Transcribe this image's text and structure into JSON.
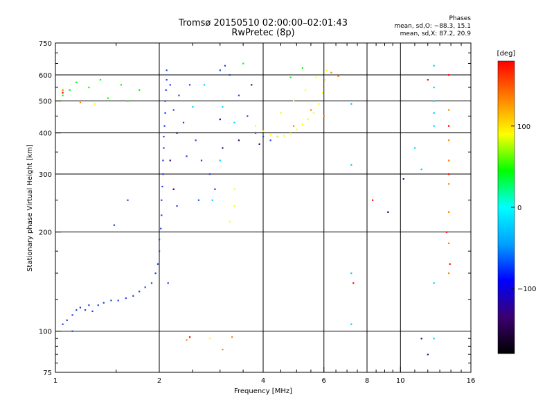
{
  "header": {
    "title_line1": "Tromsø 20150510 02:00:00–02:01:43",
    "title_line2": "RwPretec (8p)",
    "phase_label": "Phases",
    "stat_o": "mean, sd,O: −88.3, 15.1",
    "stat_x": "mean, sd,X:  87.2, 20.9"
  },
  "chart_data": {
    "type": "scatter",
    "title": "Tromsø 20150510 02:00:00–02:01:43",
    "subtitle": "RwPretec (8p)",
    "xlabel": "Frequency [MHz]",
    "ylabel": "Stationary phase Virtual Height [km]",
    "xscale": "log",
    "yscale": "log",
    "xlim": [
      1,
      16
    ],
    "ylim": [
      75,
      750
    ],
    "x_ticks": [
      1,
      2,
      4,
      6,
      8,
      10,
      16
    ],
    "x_tick_labels": [
      "1",
      "2",
      "4",
      "6",
      "8",
      "10",
      "16"
    ],
    "y_ticks": [
      75,
      100,
      200,
      300,
      400,
      500,
      600,
      750
    ],
    "y_tick_labels": [
      "75",
      "100",
      "200",
      "300",
      "400",
      "500",
      "600",
      "750"
    ],
    "grid": true,
    "colorbar": {
      "label": "[deg]",
      "range": [
        -180,
        180
      ],
      "ticks": [
        -100,
        0,
        100
      ],
      "tick_labels": [
        "−100",
        "0",
        "100"
      ],
      "colors": [
        "#000000",
        "#3b0070",
        "#0000ff",
        "#00a0ff",
        "#00ffff",
        "#00ff00",
        "#ffff00",
        "#ff8000",
        "#ff0000"
      ]
    },
    "series": [
      {
        "color": "#2040e0",
        "points": [
          [
            1.05,
            105
          ],
          [
            1.08,
            108
          ],
          [
            1.12,
            112
          ],
          [
            1.15,
            116
          ],
          [
            1.18,
            118
          ],
          [
            1.22,
            116
          ],
          [
            1.28,
            115
          ],
          [
            1.33,
            120
          ],
          [
            1.38,
            122
          ],
          [
            1.45,
            124
          ],
          [
            1.52,
            124
          ],
          [
            1.6,
            126
          ],
          [
            1.68,
            128
          ],
          [
            1.75,
            132
          ],
          [
            1.82,
            136
          ],
          [
            1.9,
            140
          ],
          [
            1.95,
            150
          ],
          [
            1.98,
            160
          ],
          [
            2.0,
            175
          ],
          [
            2.0,
            190
          ],
          [
            2.02,
            205
          ],
          [
            2.03,
            225
          ],
          [
            2.03,
            250
          ],
          [
            2.04,
            275
          ],
          [
            2.05,
            300
          ],
          [
            2.05,
            330
          ],
          [
            2.06,
            360
          ],
          [
            2.06,
            390
          ],
          [
            2.07,
            420
          ],
          [
            2.08,
            460
          ],
          [
            2.08,
            500
          ],
          [
            2.09,
            540
          ],
          [
            2.1,
            580
          ],
          [
            2.1,
            620
          ],
          [
            2.15,
            560
          ],
          [
            2.2,
            470
          ],
          [
            2.28,
            520
          ],
          [
            2.35,
            430
          ],
          [
            2.45,
            560
          ],
          [
            2.55,
            380
          ],
          [
            2.65,
            330
          ],
          [
            2.8,
            300
          ],
          [
            2.9,
            270
          ],
          [
            3.0,
            620
          ],
          [
            3.1,
            640
          ],
          [
            3.2,
            600
          ],
          [
            3.4,
            520
          ],
          [
            3.6,
            450
          ],
          [
            3.8,
            400
          ],
          [
            4.0,
            390
          ],
          [
            4.2,
            380
          ],
          [
            4.4,
            390
          ],
          [
            1.48,
            210
          ],
          [
            1.62,
            250
          ],
          [
            1.12,
            100
          ],
          [
            1.25,
            120
          ],
          [
            2.12,
            140
          ],
          [
            2.25,
            240
          ],
          [
            2.4,
            340
          ],
          [
            2.6,
            250
          ]
        ]
      },
      {
        "color": "#00d0ff",
        "points": [
          [
            2.5,
            480
          ],
          [
            2.7,
            560
          ],
          [
            2.85,
            250
          ],
          [
            3.0,
            330
          ],
          [
            7.2,
            490
          ],
          [
            7.2,
            320
          ],
          [
            7.2,
            150
          ],
          [
            7.2,
            105
          ],
          [
            12.5,
            640
          ],
          [
            12.5,
            550
          ],
          [
            12.5,
            500
          ],
          [
            12.5,
            460
          ],
          [
            12.5,
            420
          ],
          [
            11.0,
            360
          ],
          [
            11.5,
            310
          ],
          [
            12.5,
            140
          ],
          [
            12.5,
            95
          ],
          [
            3.05,
            480
          ],
          [
            3.3,
            430
          ]
        ]
      },
      {
        "color": "#00ff00",
        "points": [
          [
            1.05,
            520
          ],
          [
            1.1,
            540
          ],
          [
            1.15,
            570
          ],
          [
            1.25,
            550
          ],
          [
            1.35,
            580
          ],
          [
            1.42,
            510
          ],
          [
            1.55,
            560
          ],
          [
            1.62,
            500
          ],
          [
            1.75,
            540
          ],
          [
            4.8,
            590
          ],
          [
            5.2,
            630
          ],
          [
            3.5,
            650
          ]
        ]
      },
      {
        "color": "#ffff00",
        "points": [
          [
            3.8,
            420
          ],
          [
            4.0,
            405
          ],
          [
            4.2,
            395
          ],
          [
            4.4,
            390
          ],
          [
            4.6,
            392
          ],
          [
            4.8,
            398
          ],
          [
            5.0,
            410
          ],
          [
            5.2,
            425
          ],
          [
            5.4,
            440
          ],
          [
            5.6,
            460
          ],
          [
            5.8,
            490
          ],
          [
            5.95,
            530
          ],
          [
            6.05,
            580
          ],
          [
            6.1,
            620
          ],
          [
            4.5,
            460
          ],
          [
            4.9,
            500
          ],
          [
            5.3,
            540
          ],
          [
            5.7,
            590
          ],
          [
            3.3,
            240
          ],
          [
            3.2,
            215
          ],
          [
            2.8,
            95
          ],
          [
            3.3,
            270
          ],
          [
            1.02,
            500
          ],
          [
            1.3,
            490
          ]
        ]
      },
      {
        "color": "#ff8000",
        "points": [
          [
            2.4,
            94
          ],
          [
            3.05,
            88
          ],
          [
            3.25,
            96
          ],
          [
            4.9,
            420
          ],
          [
            5.5,
            470
          ],
          [
            6.0,
            450
          ],
          [
            6.6,
            595
          ],
          [
            6.3,
            610
          ],
          [
            13.8,
            470
          ],
          [
            13.8,
            380
          ],
          [
            13.8,
            330
          ],
          [
            13.8,
            280
          ],
          [
            13.8,
            230
          ],
          [
            13.8,
            185
          ],
          [
            13.8,
            150
          ],
          [
            1.05,
            540
          ],
          [
            1.18,
            495
          ]
        ]
      },
      {
        "color": "#ff0000",
        "points": [
          [
            2.45,
            96
          ],
          [
            1.05,
            530
          ],
          [
            7.3,
            140
          ],
          [
            13.8,
            600
          ],
          [
            13.8,
            420
          ],
          [
            13.8,
            300
          ],
          [
            8.3,
            250
          ],
          [
            12.0,
            580
          ],
          [
            13.6,
            200
          ],
          [
            13.9,
            160
          ]
        ]
      },
      {
        "color": "#3b0070",
        "points": [
          [
            3.05,
            360
          ],
          [
            3.4,
            380
          ],
          [
            3.9,
            370
          ],
          [
            2.25,
            400
          ],
          [
            2.15,
            330
          ],
          [
            2.2,
            270
          ],
          [
            3.7,
            560
          ],
          [
            3.0,
            440
          ],
          [
            10.2,
            290
          ],
          [
            11.5,
            95
          ],
          [
            12.0,
            85
          ],
          [
            9.2,
            230
          ]
        ]
      }
    ]
  }
}
